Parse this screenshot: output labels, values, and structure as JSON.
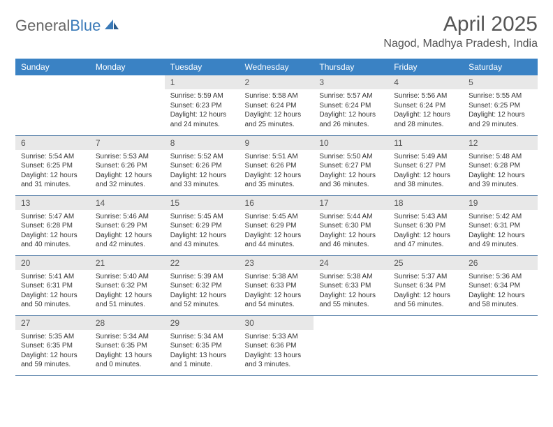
{
  "logo": {
    "word1": "General",
    "word2": "Blue"
  },
  "title": "April 2025",
  "location": "Nagod, Madhya Pradesh, India",
  "colors": {
    "header_bg": "#3a82c4",
    "header_text": "#ffffff",
    "daynum_bg": "#e8e8e8",
    "row_border": "#3a6a9a",
    "logo_gray": "#666666",
    "logo_blue": "#3a7ab8"
  },
  "days_of_week": [
    "Sunday",
    "Monday",
    "Tuesday",
    "Wednesday",
    "Thursday",
    "Friday",
    "Saturday"
  ],
  "first_day_index": 2,
  "days": [
    {
      "n": "1",
      "sr": "5:59 AM",
      "ss": "6:23 PM",
      "dl": "12 hours and 24 minutes."
    },
    {
      "n": "2",
      "sr": "5:58 AM",
      "ss": "6:24 PM",
      "dl": "12 hours and 25 minutes."
    },
    {
      "n": "3",
      "sr": "5:57 AM",
      "ss": "6:24 PM",
      "dl": "12 hours and 26 minutes."
    },
    {
      "n": "4",
      "sr": "5:56 AM",
      "ss": "6:24 PM",
      "dl": "12 hours and 28 minutes."
    },
    {
      "n": "5",
      "sr": "5:55 AM",
      "ss": "6:25 PM",
      "dl": "12 hours and 29 minutes."
    },
    {
      "n": "6",
      "sr": "5:54 AM",
      "ss": "6:25 PM",
      "dl": "12 hours and 31 minutes."
    },
    {
      "n": "7",
      "sr": "5:53 AM",
      "ss": "6:26 PM",
      "dl": "12 hours and 32 minutes."
    },
    {
      "n": "8",
      "sr": "5:52 AM",
      "ss": "6:26 PM",
      "dl": "12 hours and 33 minutes."
    },
    {
      "n": "9",
      "sr": "5:51 AM",
      "ss": "6:26 PM",
      "dl": "12 hours and 35 minutes."
    },
    {
      "n": "10",
      "sr": "5:50 AM",
      "ss": "6:27 PM",
      "dl": "12 hours and 36 minutes."
    },
    {
      "n": "11",
      "sr": "5:49 AM",
      "ss": "6:27 PM",
      "dl": "12 hours and 38 minutes."
    },
    {
      "n": "12",
      "sr": "5:48 AM",
      "ss": "6:28 PM",
      "dl": "12 hours and 39 minutes."
    },
    {
      "n": "13",
      "sr": "5:47 AM",
      "ss": "6:28 PM",
      "dl": "12 hours and 40 minutes."
    },
    {
      "n": "14",
      "sr": "5:46 AM",
      "ss": "6:29 PM",
      "dl": "12 hours and 42 minutes."
    },
    {
      "n": "15",
      "sr": "5:45 AM",
      "ss": "6:29 PM",
      "dl": "12 hours and 43 minutes."
    },
    {
      "n": "16",
      "sr": "5:45 AM",
      "ss": "6:29 PM",
      "dl": "12 hours and 44 minutes."
    },
    {
      "n": "17",
      "sr": "5:44 AM",
      "ss": "6:30 PM",
      "dl": "12 hours and 46 minutes."
    },
    {
      "n": "18",
      "sr": "5:43 AM",
      "ss": "6:30 PM",
      "dl": "12 hours and 47 minutes."
    },
    {
      "n": "19",
      "sr": "5:42 AM",
      "ss": "6:31 PM",
      "dl": "12 hours and 49 minutes."
    },
    {
      "n": "20",
      "sr": "5:41 AM",
      "ss": "6:31 PM",
      "dl": "12 hours and 50 minutes."
    },
    {
      "n": "21",
      "sr": "5:40 AM",
      "ss": "6:32 PM",
      "dl": "12 hours and 51 minutes."
    },
    {
      "n": "22",
      "sr": "5:39 AM",
      "ss": "6:32 PM",
      "dl": "12 hours and 52 minutes."
    },
    {
      "n": "23",
      "sr": "5:38 AM",
      "ss": "6:33 PM",
      "dl": "12 hours and 54 minutes."
    },
    {
      "n": "24",
      "sr": "5:38 AM",
      "ss": "6:33 PM",
      "dl": "12 hours and 55 minutes."
    },
    {
      "n": "25",
      "sr": "5:37 AM",
      "ss": "6:34 PM",
      "dl": "12 hours and 56 minutes."
    },
    {
      "n": "26",
      "sr": "5:36 AM",
      "ss": "6:34 PM",
      "dl": "12 hours and 58 minutes."
    },
    {
      "n": "27",
      "sr": "5:35 AM",
      "ss": "6:35 PM",
      "dl": "12 hours and 59 minutes."
    },
    {
      "n": "28",
      "sr": "5:34 AM",
      "ss": "6:35 PM",
      "dl": "13 hours and 0 minutes."
    },
    {
      "n": "29",
      "sr": "5:34 AM",
      "ss": "6:35 PM",
      "dl": "13 hours and 1 minute."
    },
    {
      "n": "30",
      "sr": "5:33 AM",
      "ss": "6:36 PM",
      "dl": "13 hours and 3 minutes."
    }
  ],
  "labels": {
    "sunrise": "Sunrise:",
    "sunset": "Sunset:",
    "daylight": "Daylight:"
  }
}
